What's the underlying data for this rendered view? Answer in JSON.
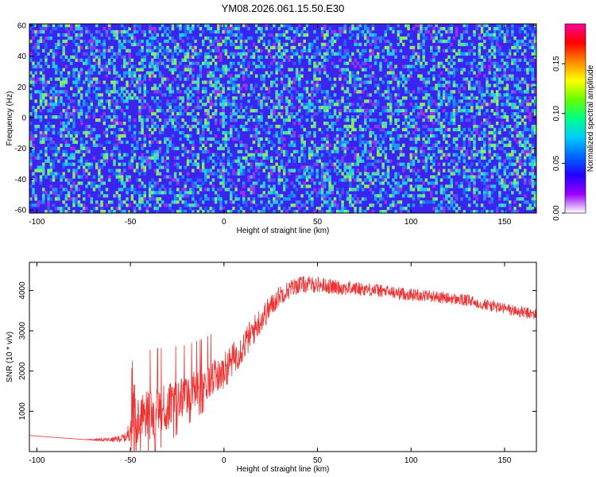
{
  "title": "YM08.2026.061.15.50.E30",
  "chart_data": [
    {
      "type": "heatmap",
      "xlabel": "Height of straight line (km)",
      "ylabel": "Frequency (Hz)",
      "xlim": [
        -104,
        167
      ],
      "ylim": [
        -62,
        61
      ],
      "xticks": [
        -100,
        -50,
        0,
        50,
        100,
        150
      ],
      "yticks": [
        -60,
        -40,
        -20,
        0,
        20,
        40,
        60
      ],
      "colorbar": {
        "label": "Normalized spectral amplitude",
        "range": [
          0,
          0.19
        ],
        "ticks": [
          "0.00",
          "0.05",
          "0.10",
          "0.15"
        ],
        "tick_values": [
          0,
          0.05,
          0.1,
          0.15
        ],
        "colors": [
          "#ffffff",
          "#9900ff",
          "#2200ff",
          "#0066ff",
          "#00ccff",
          "#00ff88",
          "#66ff00",
          "#ffff00",
          "#ff8800",
          "#ff0000",
          "#ff0099"
        ]
      },
      "background_color": "#3b24f0",
      "speckle_colors": [
        "#22ccee",
        "#1a99ff",
        "#55ddaa",
        "#2266ff",
        "#9933ee",
        "#88ee66"
      ]
    },
    {
      "type": "line",
      "xlabel": "Height of straight line (km)",
      "ylabel": "SNR (10 * v/v)",
      "xlim": [
        -104,
        167
      ],
      "ylim": [
        0,
        4700
      ],
      "xticks": [
        -100,
        -50,
        0,
        50,
        100,
        150
      ],
      "yticks": [
        1000,
        2000,
        3000,
        4000
      ],
      "series": [
        {
          "color": "#ee3333",
          "x": [
            -104,
            -90,
            -75,
            -60,
            -52,
            -48,
            -45,
            -40,
            -30,
            -20,
            -10,
            0,
            10,
            20,
            30,
            40,
            50,
            60,
            70,
            80,
            90,
            100,
            110,
            120,
            130,
            140,
            150,
            160,
            167
          ],
          "y": [
            400,
            350,
            300,
            290,
            350,
            1000,
            800,
            900,
            1100,
            1400,
            1700,
            2000,
            2600,
            3300,
            3900,
            4150,
            4150,
            4080,
            4050,
            4020,
            3950,
            3900,
            3870,
            3800,
            3750,
            3650,
            3550,
            3450,
            3400
          ],
          "noise": [
            0,
            0,
            0,
            60,
            120,
            700,
            650,
            650,
            600,
            500,
            450,
            450,
            400,
            350,
            250,
            220,
            200,
            190,
            180,
            170,
            160,
            160,
            150,
            150,
            150,
            150,
            150,
            150,
            150
          ]
        }
      ]
    }
  ]
}
